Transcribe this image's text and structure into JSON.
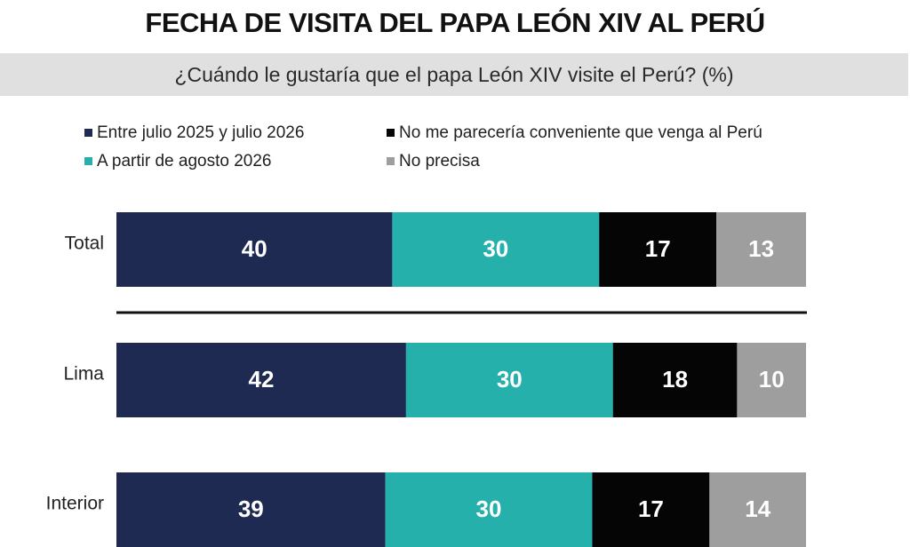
{
  "title": "FECHA DE VISITA DEL PAPA LEÓN XIV AL PERÚ",
  "subtitle": "¿Cuándo le gustaría que el papa León XIV visite el Perú? (%)",
  "colors": {
    "series": [
      "#1e2a52",
      "#26b0ac",
      "#050505",
      "#9e9e9e"
    ],
    "band": "#e0e0e0"
  },
  "chart_data": {
    "type": "bar",
    "orientation": "horizontal",
    "stacked": true,
    "title": "FECHA DE VISITA DEL PAPA LEÓN XIV AL PERÚ",
    "subtitle": "¿Cuándo le gustaría que el papa León XIV visite el Perú? (%)",
    "categories": [
      "Total",
      "Lima",
      "Interior"
    ],
    "series": [
      {
        "name": "Entre julio 2025 y julio 2026",
        "values": [
          40,
          42,
          39
        ]
      },
      {
        "name": "A partir de agosto 2026",
        "values": [
          30,
          30,
          30
        ]
      },
      {
        "name": "No me parecería conveniente que venga al Perú",
        "values": [
          17,
          18,
          17
        ]
      },
      {
        "name": "No precisa",
        "values": [
          13,
          10,
          14
        ]
      }
    ],
    "xlim": [
      0,
      100
    ],
    "legend_position": "top",
    "grid": false
  }
}
